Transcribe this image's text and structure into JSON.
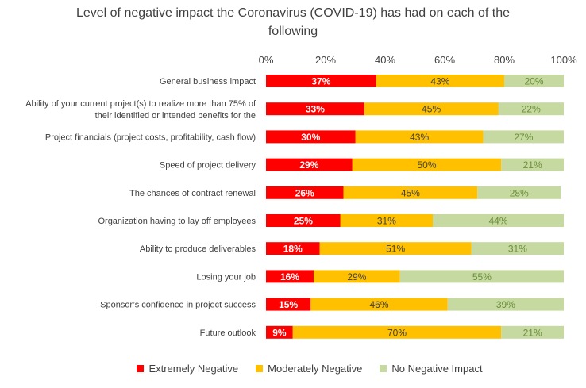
{
  "chart_data": {
    "type": "bar",
    "orientation": "horizontal",
    "stacked": true,
    "title": "Level of negative impact the Coronavirus (COVID-19) has had on each of the following",
    "title_lines": [
      "Level of negative impact the Coronavirus (COVID-19) has had on each of the",
      "following"
    ],
    "xlim": [
      0,
      100
    ],
    "x_ticks": [
      "0%",
      "20%",
      "40%",
      "60%",
      "80%",
      "100%"
    ],
    "grid": false,
    "legend_position": "bottom",
    "categories": [
      "General business impact",
      "Ability of your current project(s) to realize more than 75% of their identified or intended benefits for the",
      "Project financials (project costs, profitability, cash flow)",
      "Speed of project delivery",
      "The chances of contract renewal",
      "Organization having to lay off employees",
      "Ability to produce deliverables",
      "Losing your job",
      "Sponsor’s confidence in project success",
      "Future outlook"
    ],
    "category_label_lines": [
      [
        "General business impact"
      ],
      [
        "Ability of your current project(s) to realize more than 75% of",
        "their identified or intended benefits for the"
      ],
      [
        "Project financials (project costs, profitability, cash flow)"
      ],
      [
        "Speed of project delivery"
      ],
      [
        "The chances of contract renewal"
      ],
      [
        "Organization having to lay off employees"
      ],
      [
        "Ability to produce deliverables"
      ],
      [
        "Losing your job"
      ],
      [
        "Sponsor’s confidence in project success"
      ],
      [
        "Future outlook"
      ]
    ],
    "series": [
      {
        "name": "Extremely Negative",
        "color": "#ff0000",
        "label_color": "#ffffff",
        "values": [
          37,
          33,
          30,
          29,
          26,
          25,
          18,
          16,
          15,
          9
        ]
      },
      {
        "name": "Moderately Negative",
        "color": "#ffc000",
        "label_color": "#404040",
        "values": [
          43,
          45,
          43,
          50,
          45,
          31,
          51,
          29,
          46,
          70
        ]
      },
      {
        "name": "No Negative Impact",
        "color": "#c5d9a0",
        "label_color": "#6b8e3a",
        "values": [
          20,
          22,
          27,
          21,
          28,
          44,
          31,
          55,
          39,
          21
        ]
      }
    ],
    "data_labels": [
      [
        "37%",
        "43%",
        "20%"
      ],
      [
        "33%",
        "45%",
        "22%"
      ],
      [
        "30%",
        "43%",
        "27%"
      ],
      [
        "29%",
        "50%",
        "21%"
      ],
      [
        "26%",
        "45%",
        "28%"
      ],
      [
        "25%",
        "31%",
        "44%"
      ],
      [
        "18%",
        "51%",
        "31%"
      ],
      [
        "16%",
        "29%",
        "55%"
      ],
      [
        "15%",
        "46%",
        "39%"
      ],
      [
        "9%",
        "70%",
        "21%"
      ]
    ]
  }
}
